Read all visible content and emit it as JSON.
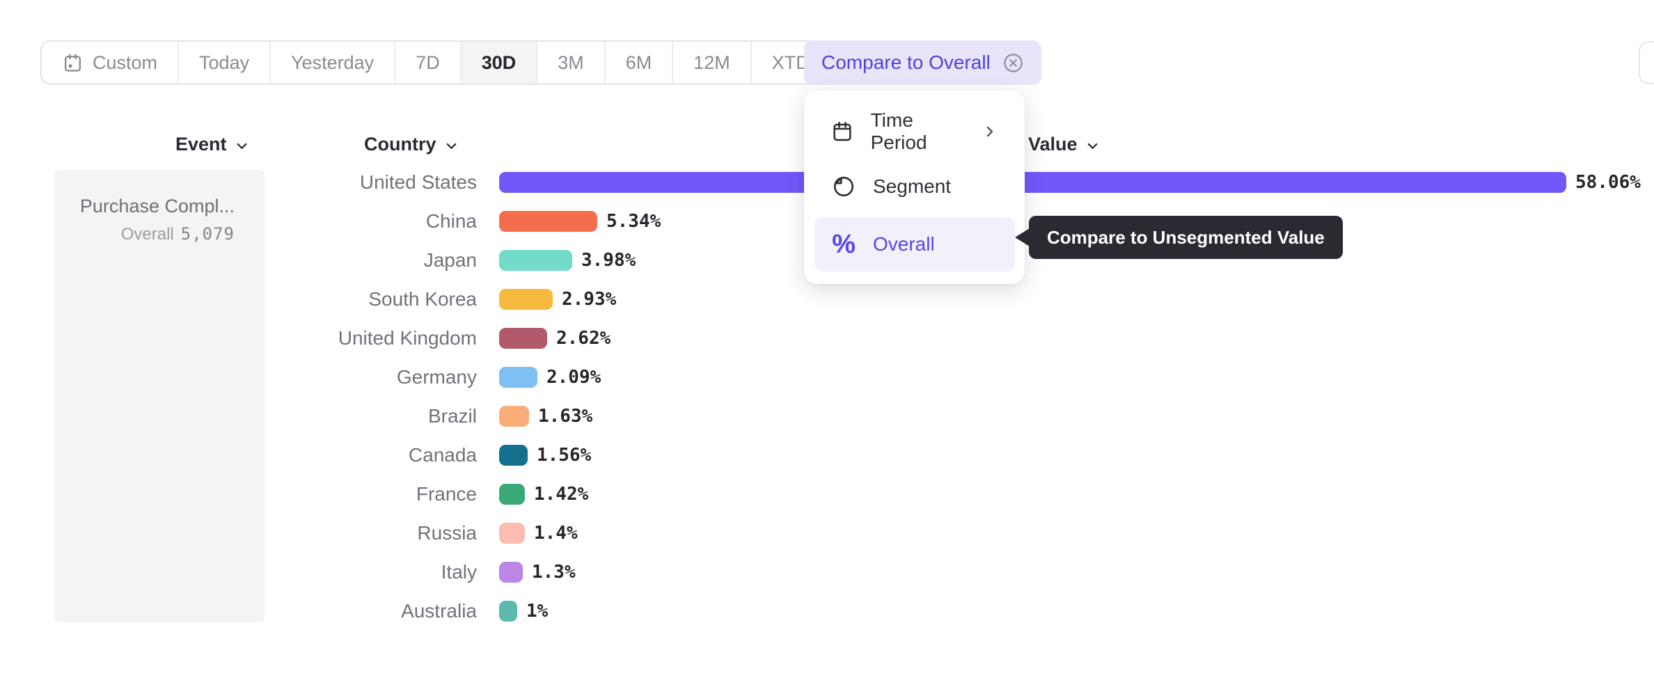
{
  "toolbar": {
    "ranges": [
      {
        "label": "Custom",
        "icon": "calendar",
        "selected": false
      },
      {
        "label": "Today",
        "selected": false
      },
      {
        "label": "Yesterday",
        "selected": false
      },
      {
        "label": "7D",
        "selected": false
      },
      {
        "label": "30D",
        "selected": true
      },
      {
        "label": "3M",
        "selected": false
      },
      {
        "label": "6M",
        "selected": false
      },
      {
        "label": "12M",
        "selected": false
      },
      {
        "label": "XTD",
        "chevron": true,
        "selected": false
      }
    ],
    "compare_chip": {
      "label": "Compare to Overall",
      "close_icon": "circle-x"
    }
  },
  "headers": {
    "event": "Event",
    "country": "Country",
    "value": "Value"
  },
  "event_panel": {
    "event_name": "Purchase Compl...",
    "overall_label": "Overall",
    "overall_value": "5,079"
  },
  "menu": {
    "items": [
      {
        "label": "Time Period",
        "icon": "calendar",
        "has_submenu": true,
        "active": false
      },
      {
        "label": "Segment",
        "icon": "segment",
        "has_submenu": false,
        "active": false
      },
      {
        "label": "Overall",
        "icon": "percent",
        "has_submenu": false,
        "active": true
      }
    ]
  },
  "tooltip": {
    "text": "Compare to Unsegmented Value"
  },
  "chart_data": {
    "type": "bar",
    "orientation": "horizontal",
    "title": "",
    "xlabel": "Value",
    "ylabel": "Country",
    "xlim": [
      0,
      58.06
    ],
    "grid": false,
    "legend": "none",
    "value_label_position": "end",
    "categories": [
      "United States",
      "China",
      "Japan",
      "South Korea",
      "United Kingdom",
      "Germany",
      "Brazil",
      "Canada",
      "France",
      "Russia",
      "Italy",
      "Australia"
    ],
    "values": [
      58.06,
      5.34,
      3.98,
      2.93,
      2.62,
      2.09,
      1.63,
      1.56,
      1.42,
      1.4,
      1.3,
      1
    ],
    "value_labels": [
      "58.06%",
      "5.34%",
      "3.98%",
      "2.93%",
      "2.62%",
      "2.09%",
      "1.63%",
      "1.56%",
      "1.42%",
      "1.4%",
      "1.3%",
      "1%"
    ],
    "bar_colors": [
      "#7257f9",
      "#f46e4d",
      "#73dbca",
      "#f5b93e",
      "#b25a6b",
      "#7ec0f2",
      "#fbad79",
      "#14708f",
      "#3aa877",
      "#fcbcaf",
      "#bd85e6",
      "#5cb9ad"
    ]
  },
  "colors": {
    "accent": "#7257f9",
    "compare_chip_bg": "#e8e5fb",
    "compare_chip_text": "#5140dc",
    "menu_active_bg": "#f2f0fb",
    "menu_active_text": "#5847e6",
    "tooltip_bg": "#2a2a33",
    "selected_range_bg": "#f4f4f5",
    "label_gray": "#71717a"
  }
}
